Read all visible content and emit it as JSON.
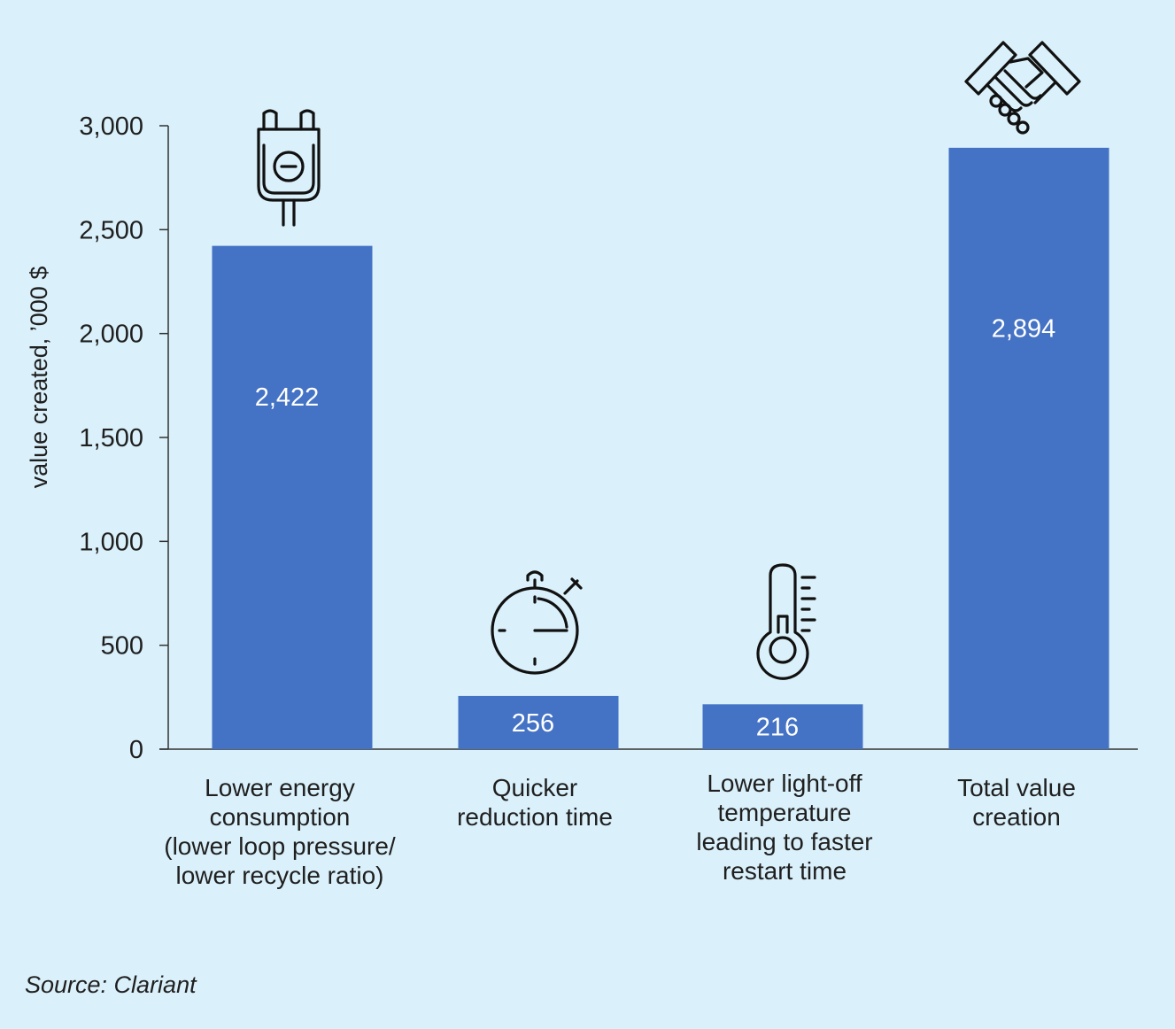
{
  "chart_data": {
    "type": "bar",
    "ylabel": "value created, ’000 $",
    "ylim": [
      0,
      3000
    ],
    "yticks": [
      0,
      500,
      1000,
      1500,
      2000,
      2500,
      3000
    ],
    "ytick_labels": [
      "0",
      "500",
      "1,000",
      "1,500",
      "2,000",
      "2,500",
      "3,000"
    ],
    "grid": false,
    "bar_color": "#4472c4",
    "categories": [
      [
        "Lower energy",
        "consumption",
        "(lower loop pressure/",
        "lower recycle ratio)"
      ],
      [
        "Quicker",
        "reduction time"
      ],
      [
        "Lower light-off",
        "temperature",
        "leading to faster",
        "restart time"
      ],
      [
        "Total value",
        "creation"
      ]
    ],
    "values": [
      2422,
      256,
      216,
      2894
    ],
    "data_labels": [
      "2,422",
      "256",
      "216",
      "2,894"
    ],
    "icons": [
      "plug-icon",
      "stopwatch-icon",
      "thermometer-icon",
      "handshake-icon"
    ]
  },
  "source": "Source: Clariant"
}
